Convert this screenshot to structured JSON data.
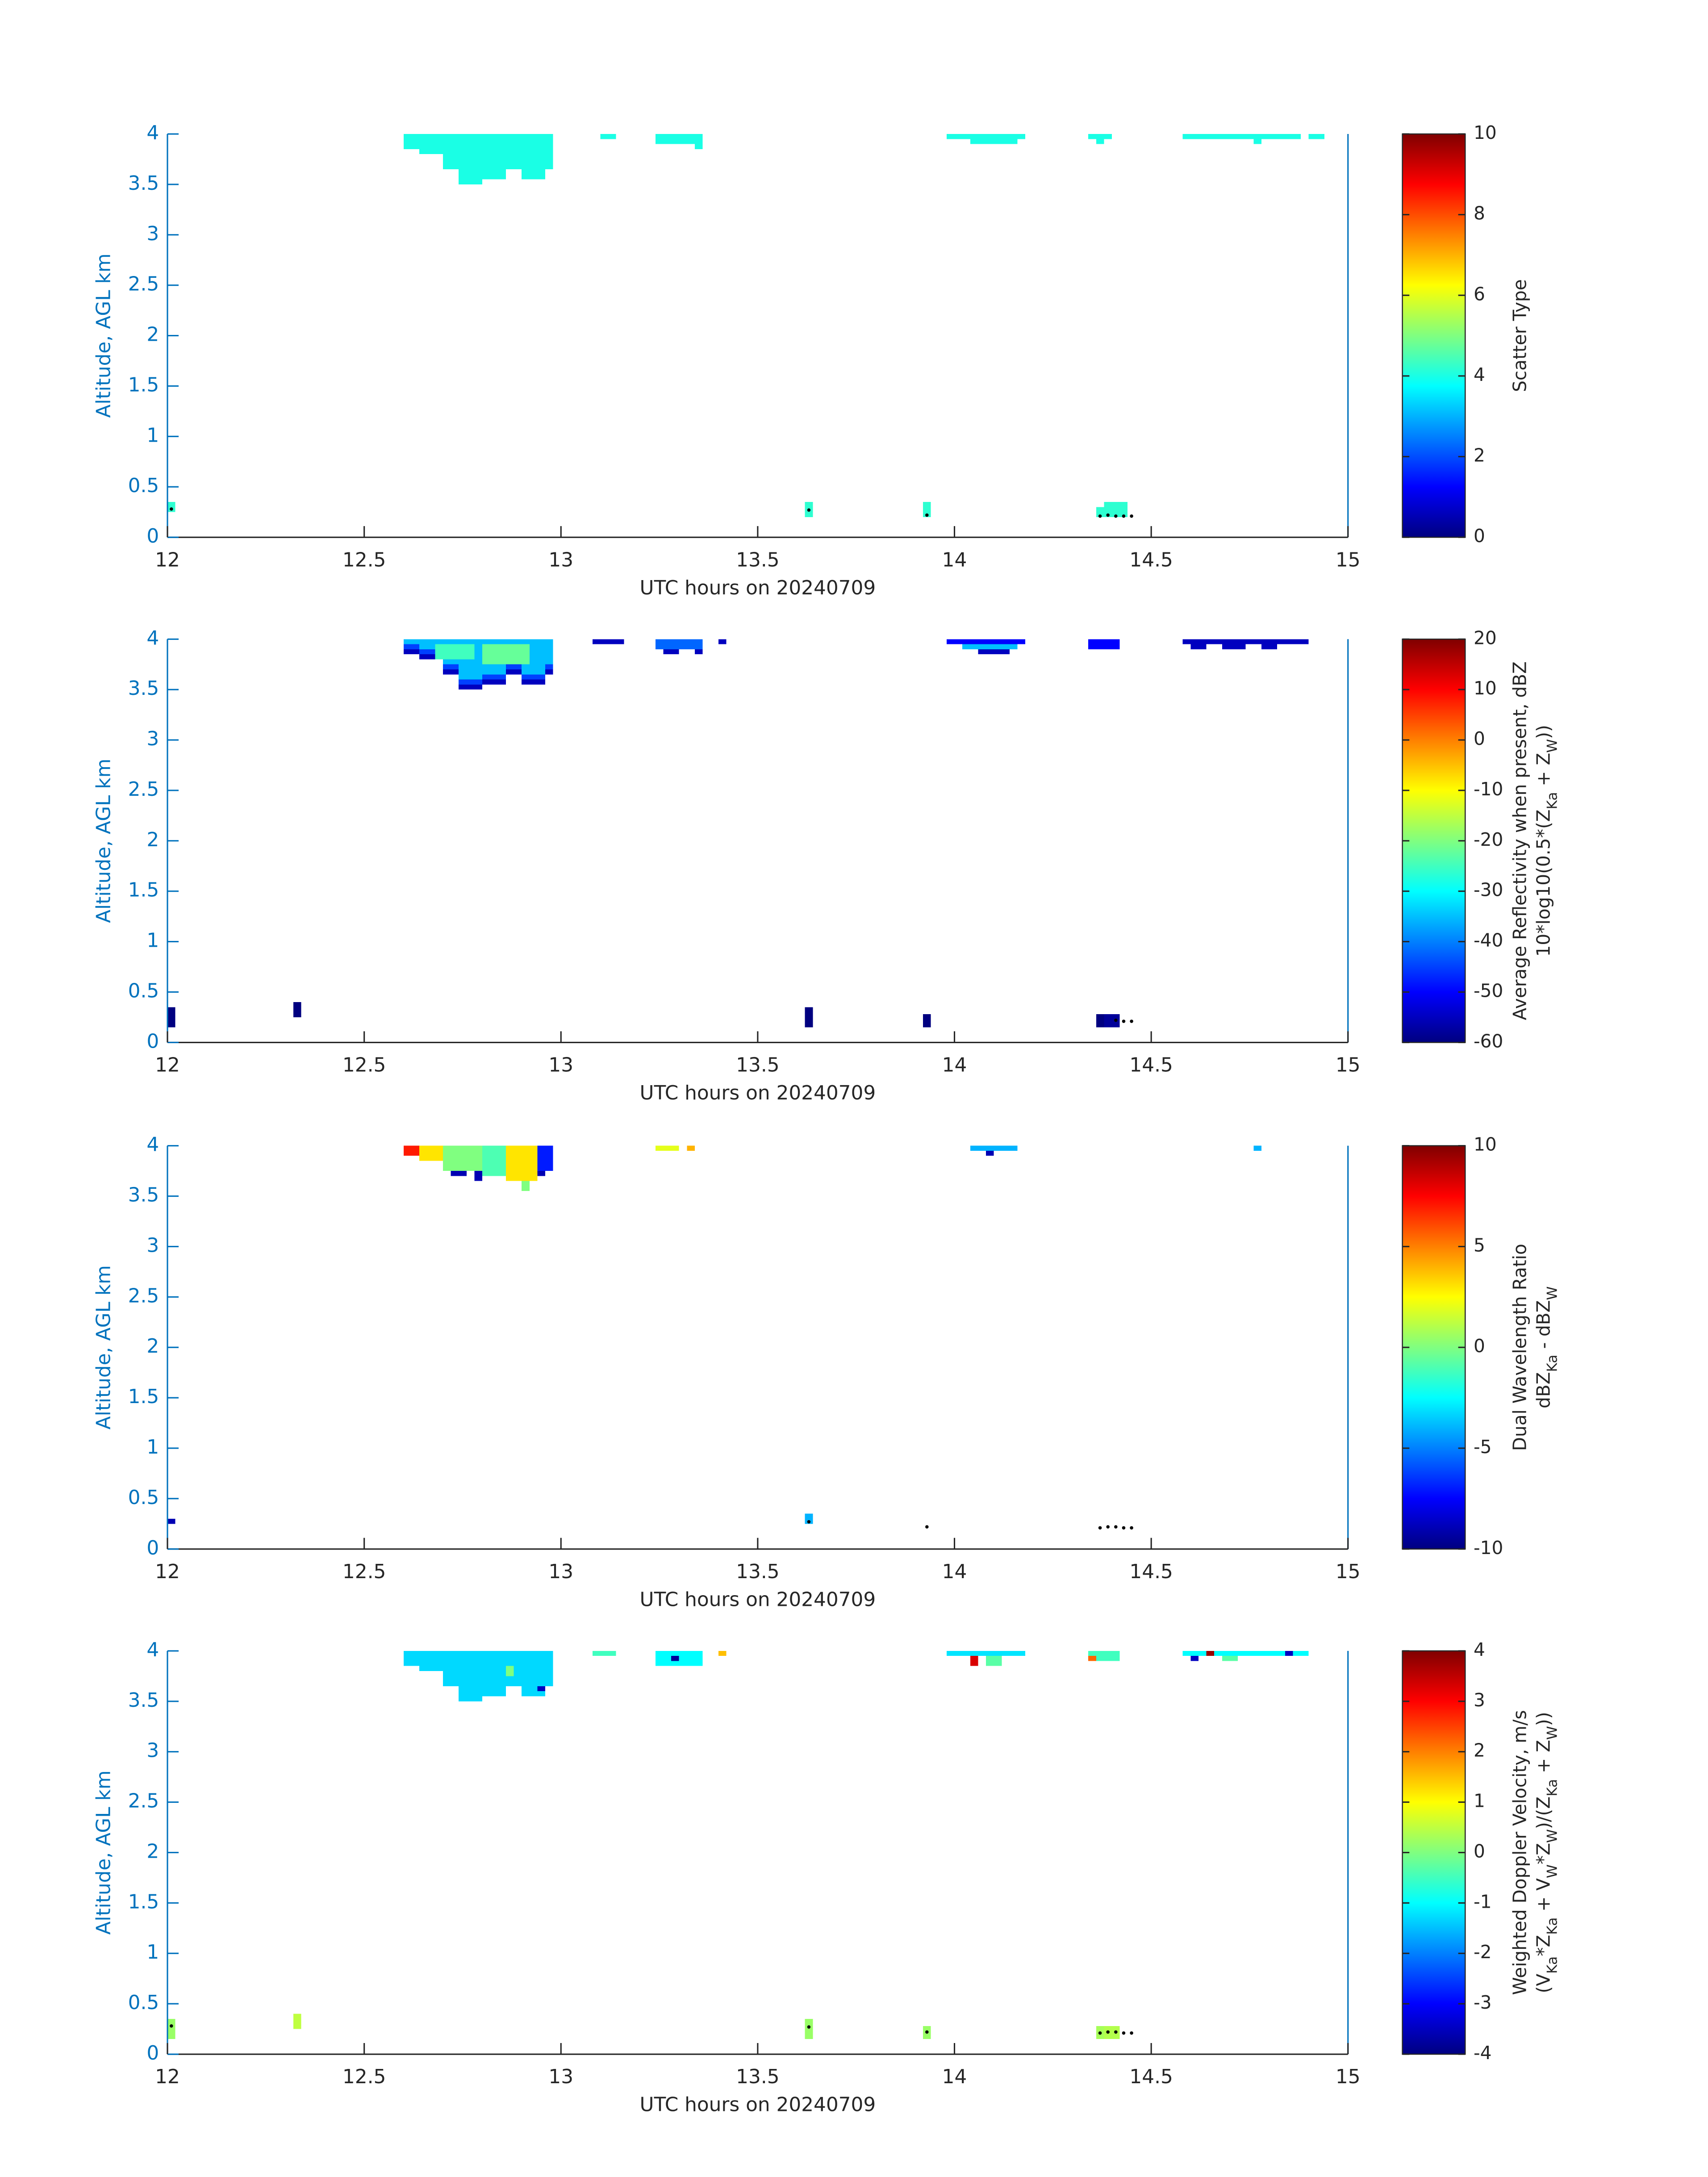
{
  "chart_data": [
    {
      "type": "heatmap",
      "colormap": "jet",
      "axis_color": "#0072BD",
      "xlabel": "UTC hours on 20240709",
      "ylabel": "Altitude, AGL km",
      "xlim": [
        12,
        15
      ],
      "xticks": [
        12,
        12.5,
        13,
        13.5,
        14,
        14.5,
        15
      ],
      "ylim": [
        0,
        4
      ],
      "yticks": [
        0,
        0.5,
        1,
        1.5,
        2,
        2.5,
        3,
        3.5,
        4
      ],
      "colorbar": {
        "clim": [
          0,
          10
        ],
        "ticks": [
          0,
          2,
          4,
          6,
          8,
          10
        ],
        "label": [
          [
            {
              "text": "Scatter Type"
            }
          ]
        ]
      },
      "cells": {
        "x0": [
          12.6,
          12.64,
          12.7,
          12.74,
          12.8,
          12.86,
          12.9,
          12.96,
          13.1,
          13.24,
          13.34,
          13.98,
          14.04,
          14.34,
          14.36,
          14.58,
          14.76,
          14.9,
          12.0,
          13.62,
          13.92,
          14.36,
          14.38
        ],
        "x1": [
          12.64,
          12.7,
          12.74,
          12.8,
          12.86,
          12.9,
          12.96,
          12.98,
          13.14,
          13.34,
          13.36,
          14.18,
          14.16,
          14.4,
          14.38,
          14.88,
          14.78,
          14.94,
          12.02,
          13.64,
          13.94,
          14.38,
          14.44
        ],
        "y0": [
          3.85,
          3.8,
          3.65,
          3.5,
          3.55,
          3.65,
          3.55,
          3.65,
          3.95,
          3.9,
          3.85,
          3.95,
          3.9,
          3.95,
          3.9,
          3.95,
          3.9,
          3.95,
          0.25,
          0.2,
          0.2,
          0.2,
          0.2
        ],
        "y1": [
          4,
          4,
          4,
          4,
          4,
          4,
          4,
          4,
          4,
          4,
          4,
          4,
          4,
          4,
          4,
          4,
          4,
          4,
          0.35,
          0.35,
          0.35,
          0.3,
          0.35
        ],
        "values": [
          4,
          4,
          4,
          4,
          4,
          4,
          4,
          4,
          4,
          4,
          4,
          4,
          4,
          4,
          4,
          4,
          4,
          4,
          4.2,
          4.2,
          4.2,
          4.2,
          4.2
        ]
      },
      "markers": {
        "x": [
          12.01,
          13.63,
          13.93,
          14.37,
          14.39,
          14.41,
          14.43,
          14.45
        ],
        "y": [
          0.28,
          0.27,
          0.22,
          0.21,
          0.22,
          0.21,
          0.21,
          0.21
        ]
      }
    },
    {
      "type": "heatmap",
      "colormap": "jet",
      "axis_color": "#0072BD",
      "xlabel": "UTC hours on 20240709",
      "ylabel": "Altitude, AGL km",
      "xlim": [
        12,
        15
      ],
      "xticks": [
        12,
        12.5,
        13,
        13.5,
        14,
        14.5,
        15
      ],
      "ylim": [
        0,
        4
      ],
      "yticks": [
        0,
        0.5,
        1,
        1.5,
        2,
        2.5,
        3,
        3.5,
        4
      ],
      "colorbar": {
        "clim": [
          -60,
          20
        ],
        "ticks": [
          -60,
          -50,
          -40,
          -30,
          -20,
          -10,
          0,
          10,
          20
        ],
        "label": [
          [
            {
              "text": "Average Reflectivity when present, dBZ"
            }
          ],
          [
            {
              "text": "10*log10(0.5*(Z"
            },
            {
              "text": "Ka",
              "sub": true
            },
            {
              "text": " + Z"
            },
            {
              "text": "W",
              "sub": true
            },
            {
              "text": "))"
            }
          ]
        ]
      },
      "cells": {
        "x0": [
          12.6,
          12.64,
          12.7,
          12.74,
          12.8,
          12.86,
          12.9,
          12.96,
          12.6,
          12.64,
          12.7,
          12.74,
          12.8,
          12.86,
          12.9,
          12.96,
          12.6,
          12.64,
          12.7,
          12.74,
          12.8,
          12.86,
          12.9,
          12.96,
          12.68,
          12.8,
          13.08,
          13.24,
          13.26,
          13.34,
          13.4,
          13.98,
          14.02,
          14.06,
          14.34,
          14.58,
          14.6,
          14.68,
          14.78,
          12.0,
          12.32,
          13.62,
          13.92,
          14.36,
          14.38
        ],
        "x1": [
          12.64,
          12.7,
          12.74,
          12.8,
          12.86,
          12.9,
          12.96,
          12.98,
          12.64,
          12.7,
          12.74,
          12.8,
          12.86,
          12.9,
          12.96,
          12.98,
          12.64,
          12.7,
          12.74,
          12.8,
          12.86,
          12.9,
          12.96,
          12.98,
          12.78,
          12.92,
          13.16,
          13.36,
          13.3,
          13.36,
          13.42,
          14.18,
          14.16,
          14.14,
          14.42,
          14.9,
          14.64,
          14.74,
          14.82,
          12.02,
          12.34,
          13.64,
          13.94,
          14.38,
          14.42
        ],
        "y0": [
          3.95,
          3.9,
          3.75,
          3.6,
          3.65,
          3.75,
          3.65,
          3.75,
          3.9,
          3.85,
          3.7,
          3.55,
          3.6,
          3.7,
          3.6,
          3.7,
          3.85,
          3.8,
          3.65,
          3.5,
          3.55,
          3.65,
          3.55,
          3.65,
          3.8,
          3.75,
          3.95,
          3.9,
          3.85,
          3.85,
          3.95,
          3.95,
          3.9,
          3.85,
          3.9,
          3.95,
          3.9,
          3.9,
          3.9,
          0.15,
          0.25,
          0.15,
          0.15,
          0.15,
          0.15
        ],
        "y1": [
          4,
          4,
          4,
          4,
          4,
          4,
          4,
          4,
          3.95,
          3.9,
          3.75,
          3.6,
          3.65,
          3.75,
          3.65,
          3.75,
          3.9,
          3.85,
          3.7,
          3.55,
          3.6,
          3.7,
          3.6,
          3.7,
          3.95,
          3.95,
          4,
          4,
          3.9,
          3.9,
          4,
          4,
          3.95,
          3.9,
          4,
          4,
          3.95,
          3.95,
          3.95,
          0.35,
          0.4,
          0.35,
          0.28,
          0.28,
          0.28
        ],
        "values": [
          -35,
          -35,
          -35,
          -35,
          -35,
          -35,
          -35,
          -35,
          -45,
          -45,
          -45,
          -45,
          -45,
          -45,
          -45,
          -45,
          -55,
          -55,
          -55,
          -55,
          -55,
          -55,
          -55,
          -55,
          -25,
          -22,
          -55,
          -42,
          -55,
          -55,
          -55,
          -50,
          -35,
          -55,
          -50,
          -55,
          -55,
          -55,
          -55,
          -60,
          -60,
          -60,
          -60,
          -60,
          -58
        ]
      },
      "markers": {
        "x": [
          14.41,
          14.43,
          14.45
        ],
        "y": [
          0.22,
          0.21,
          0.21
        ]
      }
    },
    {
      "type": "heatmap",
      "colormap": "jet",
      "axis_color": "#0072BD",
      "xlabel": "UTC hours on 20240709",
      "ylabel": "Altitude, AGL km",
      "xlim": [
        12,
        15
      ],
      "xticks": [
        12,
        12.5,
        13,
        13.5,
        14,
        14.5,
        15
      ],
      "ylim": [
        0,
        4
      ],
      "yticks": [
        0,
        0.5,
        1,
        1.5,
        2,
        2.5,
        3,
        3.5,
        4
      ],
      "colorbar": {
        "clim": [
          -10,
          10
        ],
        "ticks": [
          -10,
          -5,
          0,
          5,
          10
        ],
        "label": [
          [
            {
              "text": "Dual Wavelength Ratio"
            }
          ],
          [
            {
              "text": "dBZ"
            },
            {
              "text": "Ka",
              "sub": true
            },
            {
              "text": " - dBZ"
            },
            {
              "text": "W",
              "sub": true
            }
          ]
        ]
      },
      "cells": {
        "x0": [
          12.6,
          12.64,
          12.7,
          12.72,
          12.78,
          12.8,
          12.86,
          12.9,
          12.94,
          12.94,
          13.24,
          13.32,
          14.04,
          14.08,
          14.76,
          12.0,
          13.62
        ],
        "x1": [
          12.64,
          12.7,
          12.8,
          12.76,
          12.8,
          12.86,
          12.94,
          12.92,
          12.98,
          12.96,
          13.3,
          13.34,
          14.16,
          14.1,
          14.78,
          12.02,
          13.64
        ],
        "y0": [
          3.9,
          3.85,
          3.75,
          3.7,
          3.65,
          3.7,
          3.65,
          3.55,
          3.75,
          3.7,
          3.95,
          3.95,
          3.95,
          3.9,
          3.95,
          0.25,
          0.25
        ],
        "y1": [
          4,
          4,
          4,
          3.75,
          3.75,
          4,
          4,
          3.65,
          4,
          3.75,
          4,
          4,
          4,
          3.95,
          4,
          0.3,
          0.35
        ],
        "values": [
          7,
          3,
          0,
          -9,
          -9,
          -1,
          3,
          0,
          -7,
          -9,
          2,
          4,
          -4,
          -9,
          -4,
          -9,
          -4
        ]
      },
      "markers": {
        "x": [
          13.63,
          13.93,
          14.37,
          14.39,
          14.41,
          14.43,
          14.45
        ],
        "y": [
          0.27,
          0.22,
          0.21,
          0.22,
          0.22,
          0.21,
          0.21
        ]
      }
    },
    {
      "type": "heatmap",
      "colormap": "jet",
      "axis_color": "#0072BD",
      "xlabel": "UTC hours on 20240709",
      "ylabel": "Altitude, AGL km",
      "xlim": [
        12,
        15
      ],
      "xticks": [
        12,
        12.5,
        13,
        13.5,
        14,
        14.5,
        15
      ],
      "ylim": [
        0,
        4
      ],
      "yticks": [
        0,
        0.5,
        1,
        1.5,
        2,
        2.5,
        3,
        3.5,
        4
      ],
      "colorbar": {
        "clim": [
          -4,
          4
        ],
        "ticks": [
          -4,
          -3,
          -2,
          -1,
          0,
          1,
          2,
          3,
          4
        ],
        "label": [
          [
            {
              "text": "Weighted Doppler Velocity, m/s"
            }
          ],
          [
            {
              "text": "(V"
            },
            {
              "text": "Ka",
              "sub": true
            },
            {
              "text": "*Z"
            },
            {
              "text": "Ka",
              "sub": true
            },
            {
              "text": " + V"
            },
            {
              "text": "W",
              "sub": true
            },
            {
              "text": "*Z"
            },
            {
              "text": "W",
              "sub": true
            },
            {
              "text": ")/(Z"
            },
            {
              "text": "Ka",
              "sub": true
            },
            {
              "text": " + Z"
            },
            {
              "text": "W",
              "sub": true
            },
            {
              "text": "))"
            }
          ]
        ]
      },
      "cells": {
        "x0": [
          12.6,
          12.64,
          12.7,
          12.74,
          12.8,
          12.86,
          12.9,
          12.96,
          12.86,
          12.94,
          13.08,
          13.24,
          13.28,
          13.4,
          13.98,
          14.04,
          14.08,
          14.34,
          14.34,
          14.58,
          14.6,
          14.64,
          14.68,
          14.84,
          12.0,
          12.32,
          13.62,
          13.92,
          14.36,
          14.38
        ],
        "x1": [
          12.64,
          12.7,
          12.74,
          12.8,
          12.86,
          12.9,
          12.96,
          12.98,
          12.88,
          12.96,
          13.14,
          13.36,
          13.3,
          13.42,
          14.18,
          14.06,
          14.12,
          14.42,
          14.36,
          14.9,
          14.62,
          14.66,
          14.72,
          14.86,
          12.02,
          12.34,
          13.64,
          13.94,
          14.38,
          14.42
        ],
        "y0": [
          3.85,
          3.8,
          3.65,
          3.5,
          3.55,
          3.65,
          3.55,
          3.65,
          3.75,
          3.6,
          3.95,
          3.85,
          3.9,
          3.95,
          3.95,
          3.85,
          3.85,
          3.9,
          3.9,
          3.95,
          3.9,
          3.95,
          3.9,
          3.95,
          0.15,
          0.25,
          0.15,
          0.15,
          0.15,
          0.15
        ],
        "y1": [
          4,
          4,
          4,
          4,
          4,
          4,
          4,
          4,
          3.85,
          3.65,
          4,
          4,
          3.95,
          4,
          4,
          3.95,
          3.95,
          4,
          3.95,
          4,
          3.95,
          4,
          3.95,
          4,
          0.35,
          0.4,
          0.35,
          0.28,
          0.28,
          0.28
        ],
        "values": [
          -1.3,
          -1.3,
          -1.3,
          -1.3,
          -1.3,
          -1.3,
          -1.3,
          -1.3,
          0,
          -3.5,
          -0.5,
          -1,
          -3.8,
          1.5,
          -1.2,
          3.3,
          -0.3,
          -0.5,
          2.2,
          -1,
          -3.5,
          3.8,
          -0.3,
          -3.5,
          0.2,
          0.5,
          0.2,
          0.2,
          0.3,
          0.4
        ]
      },
      "markers": {
        "x": [
          12.01,
          13.63,
          13.93,
          14.37,
          14.39,
          14.41,
          14.43,
          14.45
        ],
        "y": [
          0.28,
          0.27,
          0.22,
          0.21,
          0.22,
          0.22,
          0.21,
          0.21
        ]
      }
    }
  ]
}
